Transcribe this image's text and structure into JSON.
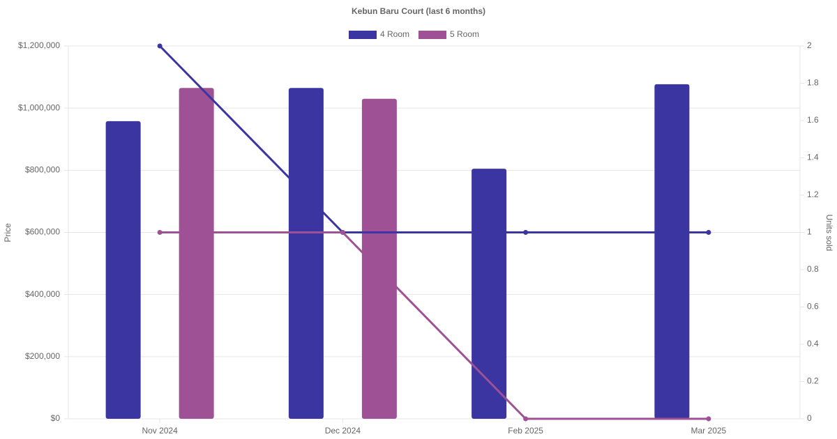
{
  "chart_data": {
    "type": "bar-line",
    "title": "Kebun Baru Court (last 6 months)",
    "y_label": "Price",
    "y2_label": "Units sold",
    "categories": [
      "Nov 2024",
      "Dec 2024",
      "Feb 2025",
      "Mar 2025"
    ],
    "series": [
      {
        "name": "4 Room",
        "color": "#3a35a0",
        "values": [
          958000,
          1065000,
          805000,
          1077000
        ],
        "units": [
          2,
          1,
          1,
          1
        ]
      },
      {
        "name": "5 Room",
        "color": "#9e5194",
        "values": [
          1065000,
          1030000,
          null,
          null
        ],
        "units": [
          1,
          1,
          0,
          0
        ]
      }
    ],
    "ylim": [
      0,
      1200000
    ],
    "yticks": [
      {
        "value": 0,
        "label": "$0"
      },
      {
        "value": 200000,
        "label": "$200,000"
      },
      {
        "value": 400000,
        "label": "$400,000"
      },
      {
        "value": 600000,
        "label": "$600,000"
      },
      {
        "value": 800000,
        "label": "$800,000"
      },
      {
        "value": 1000000,
        "label": "$1,000,000"
      },
      {
        "value": 1200000,
        "label": "$1,200,000"
      }
    ],
    "y2lim": [
      0,
      2
    ],
    "y2ticks": [
      0,
      0.2,
      0.4,
      0.6,
      0.8,
      1,
      1.2,
      1.4,
      1.6,
      1.8,
      2
    ],
    "grid": true,
    "legend": "top"
  }
}
